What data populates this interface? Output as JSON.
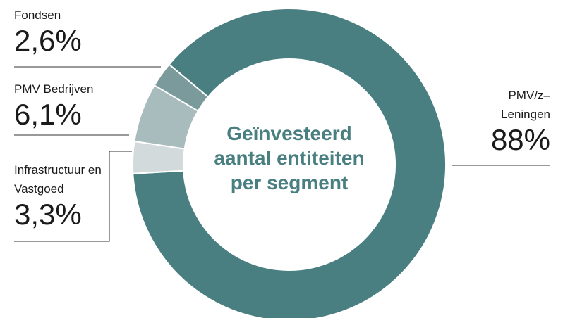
{
  "chart_data": {
    "type": "donut",
    "title": "Geïnvesteerd aantal entiteiten per segment",
    "categories": [
      "Fondsen",
      "PMV Bedrijven",
      "Infrastructuur en Vastgoed",
      "PMV/z–Leningen"
    ],
    "values": [
      2.6,
      6.1,
      3.3,
      88
    ],
    "value_labels": [
      "2,6%",
      "6,1%",
      "3,3%",
      "88%"
    ],
    "colors": [
      "#7b9a9c",
      "#a8bbbd",
      "#d3dadb",
      "#4a7f82"
    ]
  }
}
